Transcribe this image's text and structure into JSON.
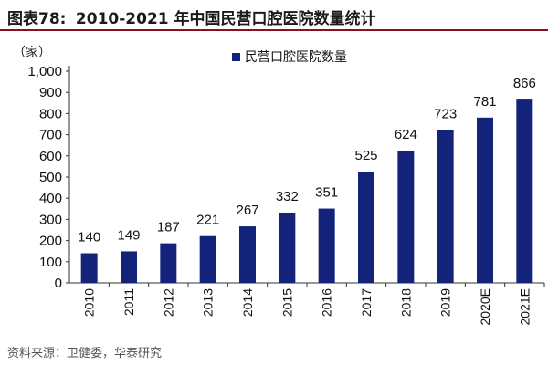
{
  "figure": {
    "label": "图表78:",
    "title": "2010-2021 年中国民营口腔医院数量统计",
    "source": "资料来源：卫健委，华泰研究"
  },
  "colors": {
    "bar": "#13237a",
    "accent": "#8a0f1f",
    "axis": "#333333"
  },
  "chart_data": {
    "type": "bar",
    "categories": [
      "2010",
      "2011",
      "2012",
      "2013",
      "2014",
      "2015",
      "2016",
      "2017",
      "2018",
      "2019",
      "2020E",
      "2021E"
    ],
    "series": [
      {
        "name": "民营口腔医院数量",
        "values": [
          140,
          149,
          187,
          221,
          267,
          332,
          351,
          525,
          624,
          723,
          781,
          866
        ]
      }
    ],
    "yunit": "（家）",
    "ylim": [
      0,
      1000
    ],
    "yticks": [
      0,
      100,
      200,
      300,
      400,
      500,
      600,
      700,
      800,
      900,
      1000
    ],
    "ytick_labels": [
      "0",
      "100",
      "200",
      "300",
      "400",
      "500",
      "600",
      "700",
      "800",
      "900",
      "1,000"
    ],
    "legend_position": "top-right",
    "grid": false
  }
}
